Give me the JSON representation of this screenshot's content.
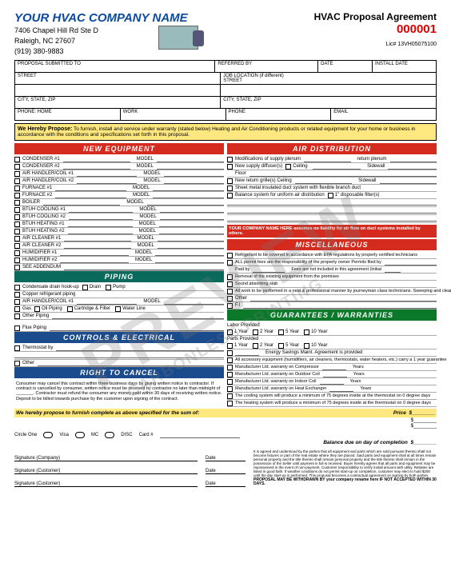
{
  "header": {
    "company": "YOUR HVAC COMPANY NAME",
    "addr1": "7406 Chapel Hill Rd Ste D",
    "addr2": "Raleigh, NC 27607",
    "phone": "(919) 380-9883",
    "agreement": "HVAC Proposal Agreement",
    "number": "000001",
    "lic": "Lic# 13VH05075100"
  },
  "top": {
    "c1": "PROPOSAL SUBMITTED TO",
    "c2": "REFERRED BY",
    "c3": "DATE",
    "c4": "INSTALL DATE",
    "street": "STREET",
    "job": "JOB LOCATION (if different)",
    "street2": "STREET",
    "csz": "CITY, STATE, ZIP",
    "csz2": "CITY, STATE, ZIP",
    "ph": "PHONE: HOME",
    "work": "WORK",
    "ph2": "PHONE",
    "email": "EMAIL"
  },
  "propose": {
    "bold": "We Hereby Propose:",
    "text": " To furnish, install and service under warranty (stated below) Heating and Air Conditioning products or related equipment for your home or business in accordance with the conditions and specifications set forth in this proposal."
  },
  "sections": {
    "newequip": {
      "title": "NEW EQUIPMENT",
      "items": [
        "CONDENSER #1",
        "CONDENSER #2",
        "AIR HANDLER/COIL #1",
        "AIR HANDLER/COIL #2",
        "FURNACE #1",
        "FURNACE #2",
        "BOILER",
        "BTUH COOLING #1",
        "BTUH COOLING #2",
        "BTUH HEATING #1",
        "BTUH HEATING #2",
        "AIR CLEANER #1",
        "AIR CLEANER #2",
        "HUMIDIFIER #1",
        "HUMIDIFIER #2",
        "SEE ADDENDUM"
      ],
      "model": "MODEL"
    },
    "piping": {
      "title": "PIPING",
      "r1": {
        "a": "Condensate drain hook-up",
        "b": "Drain",
        "c": "Pump"
      },
      "r2": "Copper refrigerant piping",
      "r3": {
        "a": "AIR HANDLER/COIL #1",
        "b": "MODEL"
      },
      "r4": {
        "a": "Gas",
        "b": "Oil Piping",
        "c": "Cartridge & Filter",
        "d": "Water Line"
      },
      "r5": "Other Piping",
      "r6": "Flue Piping"
    },
    "controls": {
      "title": "CONTROLS & ELECTRICAL",
      "r1": "Thermostat by",
      "r2": "Other"
    },
    "cancel": {
      "title": "RIGHT TO CANCEL",
      "text": "Consumer may cancel this contract within three business days by giving written notice to contractor. If contract is cancelled by consumer, written notice must be received by contractor no later than midnight of _______. Contractor must refund the consumer any money paid within 30 days of receiving written notice. Deposit to be billed towards purchase by the customer upon signing of the contract."
    },
    "airdist": {
      "title": "AIR DISTRIBUTION",
      "r1": {
        "a": "Modifications of supply plenum",
        "b": "return plenum"
      },
      "r2": {
        "a": "New supply diffuser(s)",
        "b": "Ceiling",
        "c": "Sidewall"
      },
      "r3": "Floor",
      "r4": {
        "a": "New return grille(s) Ceiling",
        "b": "Sidewall"
      },
      "r5": "Sheet metal insulated duct system with flexible branch duct",
      "r6": {
        "a": "Balance system for uniform air distribution",
        "b": "1\" disposable filter(s)"
      },
      "note": "YOUR COMPANY NAME HERE assumes no liability for air flow on duct systems installed by others."
    },
    "misc": {
      "title": "MISCELLANEOUS",
      "r1": "Refrigerant to be covered in accordance with EPA regulations by properly certified technicians",
      "r2": "ALL permit fees are the responsibility of the property owner Permits filed by",
      "r3": {
        "a": "Paid by",
        "b": "Fees are not included in this agreement (initial"
      },
      "r4": "Removal of the existing equipment from the premises",
      "r5": "Sound absorbing slab",
      "r6": "All work to be performed in a neat & professional manner by journeyman class technicians. Sweeping and cleaning will be accomplished at the conclusion of each day's work & all debris removed from the premises",
      "r7": "Other",
      "r8": "F.I"
    },
    "guar": {
      "title": "GUARANTEES / WARRANTIES",
      "labor": "Labor Provided",
      "parts": "Parts Provided",
      "y": [
        "1 Year",
        "2 Year",
        "5 Year",
        "10 Year"
      ],
      "esm": "Energy Savings Maint. Agreement is provided",
      "acc": "All accessory equipment (humidifiers, air cleaners, thermostats, water heaters, etc.) carry a 1 year guarantee",
      "m": [
        "Manufacturer Ltd. warranty on Compressor",
        "Manufacturer Ltd. warranty on Outdoor Coil",
        "Manufacturer Ltd. warranty on Indoor Coil",
        "Manufacturer Ltd. warranty on Heat Exchanger"
      ],
      "yrs": "Years",
      "cool": "The cooling system will produce a minimum of 75 degrees inside at the thermostat on 0 degree days",
      "heat": "The heating system will produce a minimum of 75 degrees inside at the thermostat on 0 degree days"
    }
  },
  "sum": {
    "left": "We hereby propose to furnish complete as above specified for the sum of:",
    "price": "Price",
    "s": "$"
  },
  "pay": {
    "circle": "Circle One",
    "opts": [
      "Visa",
      "MC",
      "DISC"
    ],
    "card": "Card #"
  },
  "bal": "Balance due on day of completion",
  "s2": "$",
  "sigs": {
    "s1": "Signature (Company)",
    "s2": "Signature (Customer)",
    "s3": "Signature (Customer)",
    "date": "Date"
  },
  "fine": "It is agreed and understood by the parties that all equipment and parts which are sold pursuant thereto shall not become fixtures or part of the real estate where they are placed. Said parts and equipment shall at all times remain personal property and the title thereto shall remain personal property and the title thereto shall remain in the possession of the Seller until payment in full is received. Buyer hereby agrees that all parts and equipment may be repossessed in the event of non-payment. Customer responsibility to verify install amount with utility. Rebates are listed in good faith. If weather conditions do not permit start-up on completion, customer may elect to hold $200 until the day start-up is performed. This proposal becomes a contractual agreement on signing by both parties.",
  "fineB": "PROPOSAL MAY BE WITHDRAWN BY your company rename here IF NOT ACCEPTED WITHIN 30 DAYS.",
  "wm": "PREVIEW",
  "wm2": "CARBONLESS PRINTING"
}
